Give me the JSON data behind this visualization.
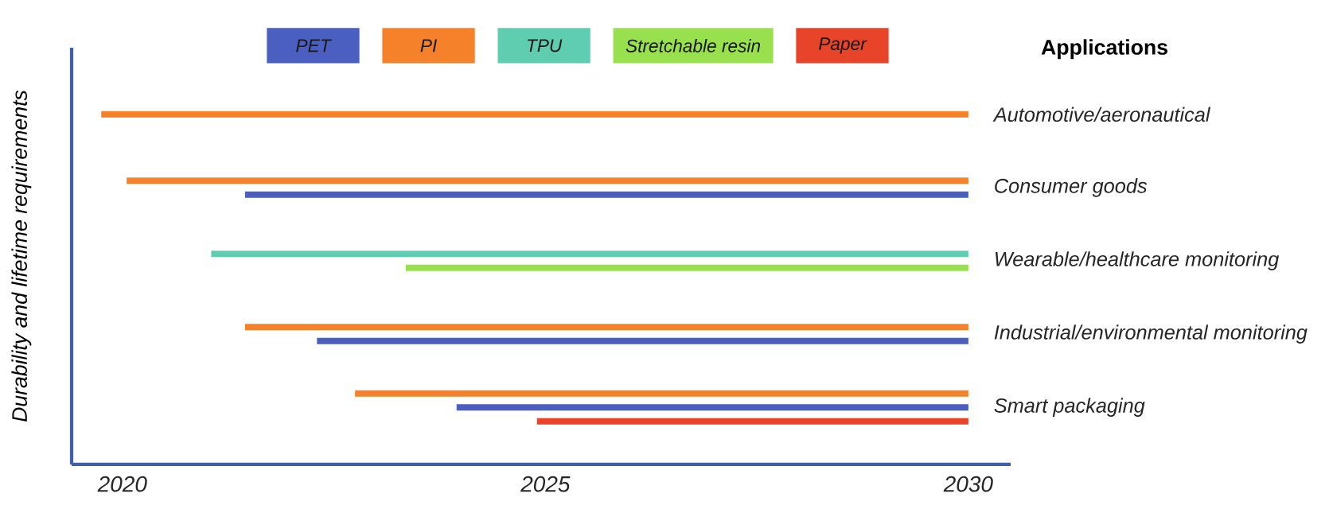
{
  "chart_data": {
    "type": "bar",
    "orientation": "horizontal",
    "ylabel": "Durability and lifetime requirements",
    "annotations": [
      "Applications"
    ],
    "categories": [
      "Automotive/aeronautical",
      "Consumer goods",
      "Wearable/healthcare monitoring",
      "Industrial/environmental monitoring",
      "Smart packaging"
    ],
    "xlim": [
      2019.4,
      2030.5
    ],
    "xticks": [
      2020,
      2025,
      2030
    ],
    "legend": "top",
    "series": [
      {
        "name": "PET",
        "color": "#4a5fbf",
        "base": [
          null,
          2021.45,
          null,
          2022.3,
          2023.95
        ],
        "values": [
          null,
          8.55,
          null,
          7.7,
          6.05
        ]
      },
      {
        "name": "PI",
        "color": "#f5822a",
        "base": [
          2019.75,
          2020.05,
          null,
          2021.45,
          2022.75
        ],
        "values": [
          10.25,
          9.95,
          null,
          8.55,
          7.25
        ]
      },
      {
        "name": "TPU",
        "color": "#5fcdb0",
        "base": [
          null,
          null,
          2021.05,
          null,
          null
        ],
        "values": [
          null,
          null,
          8.95,
          null,
          null
        ]
      },
      {
        "name": "Stretchable resin",
        "color": "#99e04f",
        "base": [
          null,
          null,
          2023.35,
          null,
          null
        ],
        "values": [
          null,
          null,
          6.65,
          null,
          null
        ]
      },
      {
        "name": "Paper",
        "color": "#e8442a",
        "base": [
          null,
          null,
          null,
          null,
          2024.9
        ],
        "values": [
          null,
          null,
          null,
          null,
          5.1
        ]
      }
    ]
  }
}
